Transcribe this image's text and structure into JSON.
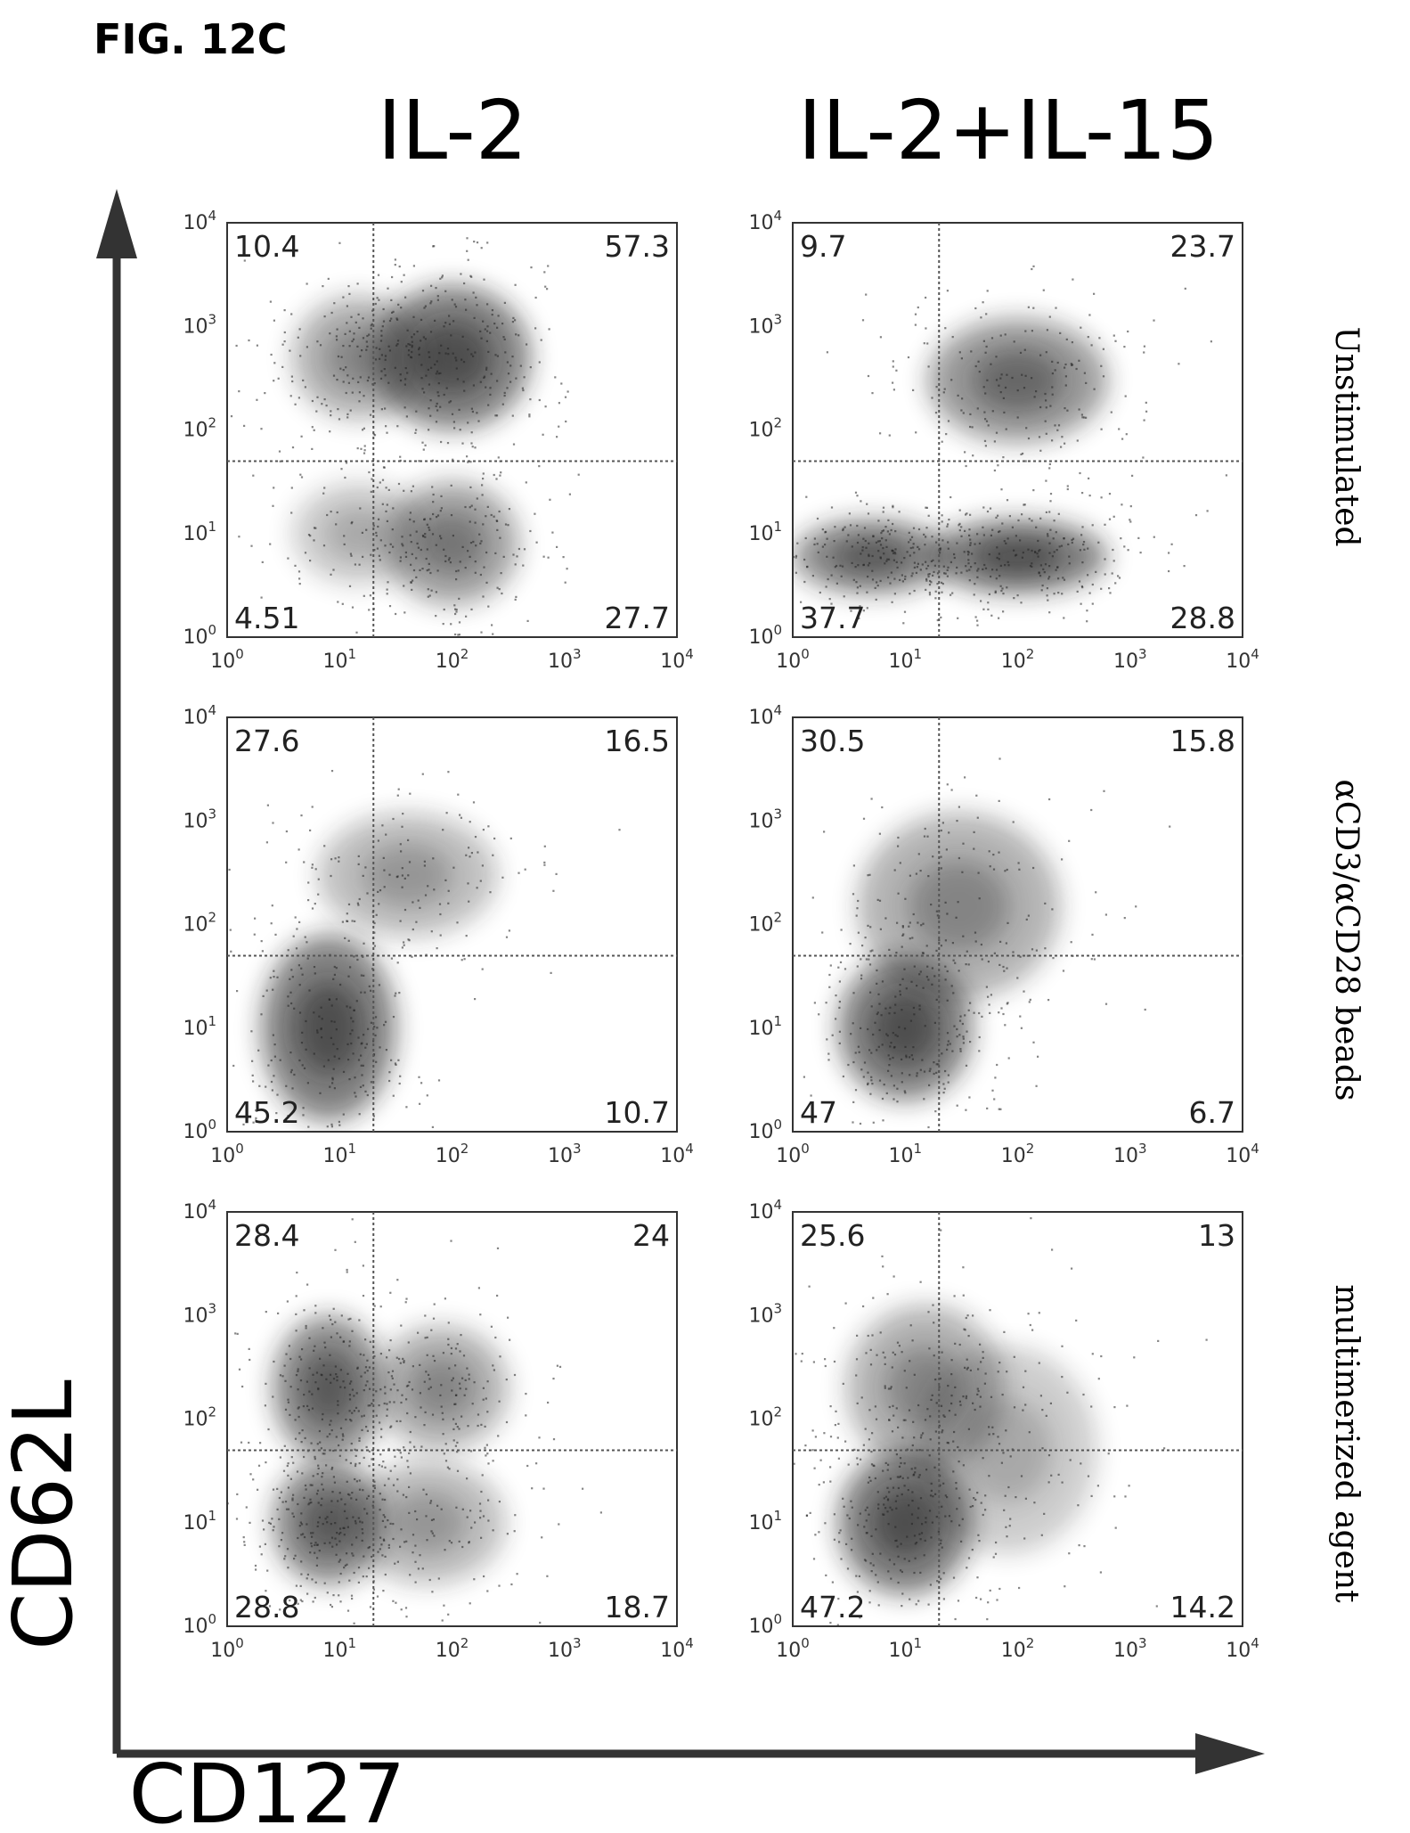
{
  "figure_label": "FIG. 12C",
  "x_axis_title": "CD127",
  "y_axis_title": "CD62L",
  "columns": [
    "IL-2",
    "IL-2+IL-15"
  ],
  "rows": [
    "Unstimulated",
    "αCD3/αCD28 beads",
    "multimerized agent"
  ],
  "colors": {
    "ink": "#111111",
    "gate": "#555555",
    "density": "#1a1a1a"
  },
  "chart_data": {
    "type": "scatter",
    "subtype": "flow-cytometry-density-plot-grid",
    "x_scale": "log",
    "y_scale": "log",
    "xlim": [
      1,
      10000
    ],
    "ylim": [
      1,
      10000
    ],
    "x_ticks": [
      {
        "base": "10",
        "exp": "0"
      },
      {
        "base": "10",
        "exp": "1"
      },
      {
        "base": "10",
        "exp": "2"
      },
      {
        "base": "10",
        "exp": "3"
      },
      {
        "base": "10",
        "exp": "4"
      }
    ],
    "y_ticks": [
      {
        "base": "10",
        "exp": "0"
      },
      {
        "base": "10",
        "exp": "1"
      },
      {
        "base": "10",
        "exp": "2"
      },
      {
        "base": "10",
        "exp": "3"
      },
      {
        "base": "10",
        "exp": "4"
      }
    ],
    "panels": [
      {
        "row": 0,
        "col": 0,
        "gate_x": 20,
        "gate_y": 50,
        "quadrants": {
          "ul": "10.4",
          "ur": "57.3",
          "ll": "4.51",
          "lr": "27.7"
        },
        "clusters": [
          {
            "x": 100,
            "y": 500,
            "sx": 0.35,
            "sy": 0.35,
            "w": 1.0
          },
          {
            "x": 15,
            "y": 500,
            "sx": 0.3,
            "sy": 0.3,
            "w": 0.6
          },
          {
            "x": 100,
            "y": 8,
            "sx": 0.3,
            "sy": 0.3,
            "w": 0.7
          },
          {
            "x": 15,
            "y": 10,
            "sx": 0.3,
            "sy": 0.25,
            "w": 0.4
          }
        ]
      },
      {
        "row": 0,
        "col": 1,
        "gate_x": 20,
        "gate_y": 50,
        "quadrants": {
          "ul": "9.7",
          "ur": "23.7",
          "ll": "37.7",
          "lr": "28.8"
        },
        "clusters": [
          {
            "x": 100,
            "y": 300,
            "sx": 0.4,
            "sy": 0.3,
            "w": 0.8
          },
          {
            "x": 5,
            "y": 6,
            "sx": 0.35,
            "sy": 0.18,
            "w": 0.9
          },
          {
            "x": 100,
            "y": 6,
            "sx": 0.4,
            "sy": 0.18,
            "w": 1.0
          }
        ]
      },
      {
        "row": 1,
        "col": 0,
        "gate_x": 20,
        "gate_y": 50,
        "quadrants": {
          "ul": "27.6",
          "ur": "16.5",
          "ll": "45.2",
          "lr": "10.7"
        },
        "clusters": [
          {
            "x": 8,
            "y": 10,
            "sx": 0.3,
            "sy": 0.45,
            "w": 1.0
          },
          {
            "x": 40,
            "y": 300,
            "sx": 0.4,
            "sy": 0.3,
            "w": 0.5
          }
        ]
      },
      {
        "row": 1,
        "col": 1,
        "gate_x": 20,
        "gate_y": 50,
        "quadrants": {
          "ul": "30.5",
          "ur": "15.8",
          "ll": "47",
          "lr": "6.7"
        },
        "clusters": [
          {
            "x": 10,
            "y": 10,
            "sx": 0.3,
            "sy": 0.35,
            "w": 1.0
          },
          {
            "x": 30,
            "y": 150,
            "sx": 0.45,
            "sy": 0.45,
            "w": 0.6
          }
        ]
      },
      {
        "row": 2,
        "col": 0,
        "gate_x": 20,
        "gate_y": 50,
        "quadrants": {
          "ul": "28.4",
          "ur": "24",
          "ll": "28.8",
          "lr": "18.7"
        },
        "clusters": [
          {
            "x": 8,
            "y": 200,
            "sx": 0.25,
            "sy": 0.35,
            "w": 0.9
          },
          {
            "x": 8,
            "y": 10,
            "sx": 0.25,
            "sy": 0.3,
            "w": 0.9
          },
          {
            "x": 80,
            "y": 200,
            "sx": 0.3,
            "sy": 0.3,
            "w": 0.6
          },
          {
            "x": 60,
            "y": 10,
            "sx": 0.35,
            "sy": 0.3,
            "w": 0.5
          }
        ]
      },
      {
        "row": 2,
        "col": 1,
        "gate_x": 20,
        "gate_y": 50,
        "quadrants": {
          "ul": "25.6",
          "ur": "13",
          "ll": "47.2",
          "lr": "14.2"
        },
        "clusters": [
          {
            "x": 10,
            "y": 10,
            "sx": 0.3,
            "sy": 0.35,
            "w": 1.0
          },
          {
            "x": 15,
            "y": 200,
            "sx": 0.35,
            "sy": 0.4,
            "w": 0.6
          },
          {
            "x": 80,
            "y": 50,
            "sx": 0.4,
            "sy": 0.5,
            "w": 0.4
          }
        ]
      }
    ]
  }
}
